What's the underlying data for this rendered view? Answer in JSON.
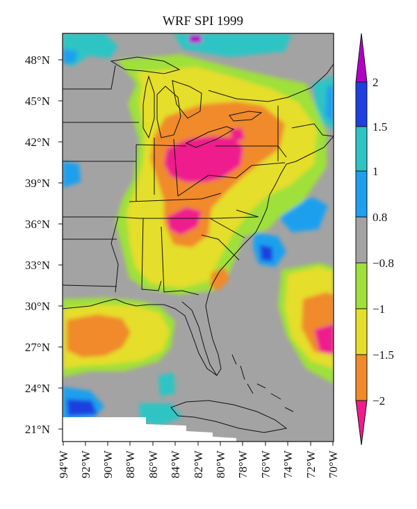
{
  "title": "WRF SPI 1999",
  "map": {
    "lon_range": [
      -94,
      -70
    ],
    "lat_range": [
      20,
      50
    ],
    "lat_ticks": [
      "48°N",
      "45°N",
      "42°N",
      "39°N",
      "36°N",
      "33°N",
      "30°N",
      "27°N",
      "24°N",
      "21°N"
    ],
    "lon_ticks": [
      "94°W",
      "92°W",
      "90°W",
      "88°W",
      "86°W",
      "84°W",
      "82°W",
      "80°W",
      "78°W",
      "76°W",
      "74°W",
      "72°W",
      "70°W"
    ]
  },
  "colorbar": {
    "labels": [
      "2",
      "1.5",
      "1",
      "0.8",
      "−0.8",
      "−1",
      "−1.5",
      "−2"
    ],
    "bins": [
      {
        "range": "> 2",
        "color": "#b000c8"
      },
      {
        "range": "1.5 to 2",
        "color": "#1f3fe0"
      },
      {
        "range": "1 to 1.5",
        "color": "#2ec4c4"
      },
      {
        "range": "0.8 to 1",
        "color": "#1ea0ee"
      },
      {
        "range": "−0.8 to 0.8",
        "color": "#a3a3a3"
      },
      {
        "range": "−1 to −0.8",
        "color": "#9fe03a"
      },
      {
        "range": "−1.5 to −1",
        "color": "#e5de2c"
      },
      {
        "range": "−2 to −1.5",
        "color": "#f08a2a"
      },
      {
        "range": "< −2",
        "color": "#ee1c8c"
      }
    ]
  },
  "colors": {
    "gray": "#a3a3a3",
    "no_data": "#ffffff",
    "land_border": "#111111"
  }
}
